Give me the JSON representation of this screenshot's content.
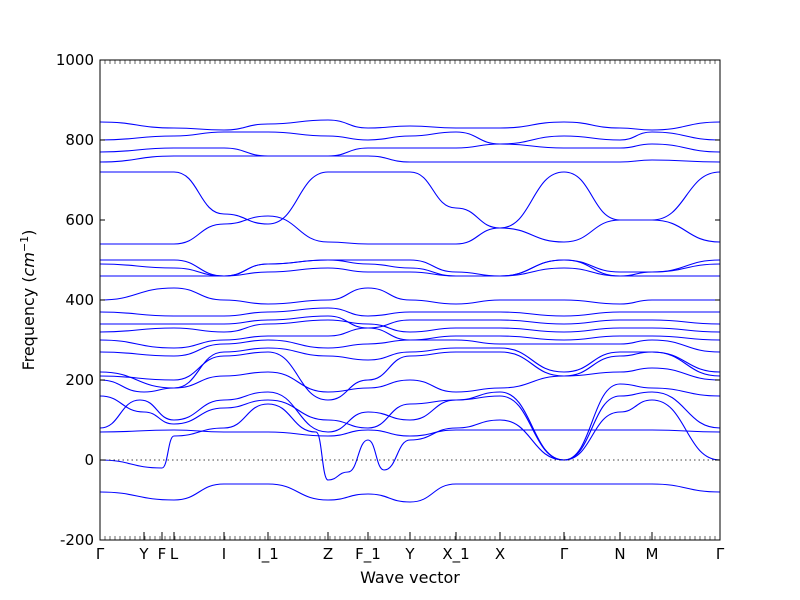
{
  "chart_data": {
    "type": "line",
    "title": "",
    "xlabel": "Wave vector",
    "ylabel": "Frequency ($cm^{-1}$)",
    "ylim": [
      -200,
      1000
    ],
    "yticks": [
      -200,
      0,
      200,
      400,
      600,
      800,
      1000
    ],
    "xlim": [
      0,
      15.5
    ],
    "zero_line": "dotted",
    "x_ticks": [
      {
        "label": "Γ",
        "x": 0.0
      },
      {
        "label": "Y",
        "x": 1.1
      },
      {
        "label": "F",
        "x": 1.55
      },
      {
        "label": "L",
        "x": 1.85
      },
      {
        "label": "I",
        "x": 3.1
      },
      {
        "label": "I_1",
        "x": 4.2
      },
      {
        "label": "Z",
        "x": 5.7
      },
      {
        "label": "F_1",
        "x": 6.7
      },
      {
        "label": "Y",
        "x": 7.75
      },
      {
        "label": "X_1",
        "x": 8.9
      },
      {
        "label": "X",
        "x": 10.0
      },
      {
        "label": "Γ",
        "x": 11.6
      },
      {
        "label": "N",
        "x": 13.0
      },
      {
        "label": "M",
        "x": 13.8
      },
      {
        "label": "Γ",
        "x": 15.5
      }
    ],
    "series": [
      {
        "x": [
          0,
          1.85,
          3.1,
          4.2,
          5.7,
          6.7,
          7.75,
          8.9,
          10.0,
          11.6,
          13.0,
          13.8,
          15.5
        ],
        "values": [
          -80,
          -100,
          -60,
          -60,
          -100,
          -85,
          -105,
          -60,
          -60,
          -60,
          -60,
          -60,
          -80
        ]
      },
      {
        "x": [
          0,
          1.55,
          1.85,
          3.1,
          4.2,
          5.4,
          5.7,
          6.2,
          6.7,
          7.1,
          7.75,
          8.9,
          10.0,
          11.6,
          13.0,
          13.8,
          15.5
        ],
        "values": [
          0,
          -20,
          60,
          80,
          140,
          70,
          -50,
          -30,
          50,
          -25,
          50,
          80,
          100,
          0,
          120,
          150,
          0
        ]
      },
      {
        "x": [
          0,
          1.85,
          3.1,
          4.2,
          5.7,
          6.7,
          7.75,
          8.9,
          10.0,
          11.6,
          13.0,
          13.8,
          15.5
        ],
        "values": [
          70,
          75,
          70,
          70,
          60,
          75,
          60,
          75,
          75,
          75,
          75,
          75,
          70
        ]
      },
      {
        "x": [
          0,
          1.0,
          1.85,
          3.1,
          4.2,
          5.7,
          6.7,
          7.75,
          8.9,
          10.0,
          11.6,
          13.0,
          13.8,
          15.5
        ],
        "values": [
          80,
          150,
          100,
          150,
          170,
          70,
          120,
          100,
          150,
          170,
          0,
          160,
          170,
          80
        ]
      },
      {
        "x": [
          0,
          1.1,
          1.85,
          3.1,
          4.2,
          5.7,
          6.7,
          7.75,
          8.9,
          10.0,
          11.6,
          13.0,
          13.8,
          15.5
        ],
        "values": [
          160,
          120,
          90,
          130,
          150,
          100,
          80,
          140,
          150,
          160,
          0,
          190,
          180,
          160
        ]
      },
      {
        "x": [
          0,
          1.1,
          1.85,
          3.1,
          4.2,
          5.7,
          6.7,
          7.75,
          8.9,
          10.0,
          11.6,
          13.0,
          13.8,
          15.5
        ],
        "values": [
          200,
          170,
          180,
          210,
          220,
          170,
          180,
          200,
          170,
          180,
          210,
          220,
          230,
          200
        ]
      },
      {
        "x": [
          0,
          1.85,
          3.1,
          4.2,
          5.7,
          6.7,
          7.75,
          8.9,
          10.0,
          11.6,
          13.0,
          13.8,
          15.5
        ],
        "values": [
          210,
          200,
          260,
          270,
          150,
          200,
          260,
          270,
          270,
          210,
          260,
          270,
          210
        ]
      },
      {
        "x": [
          0,
          1.85,
          3.1,
          4.2,
          5.7,
          6.7,
          7.75,
          8.9,
          10.0,
          11.6,
          13.0,
          13.8,
          15.5
        ],
        "values": [
          220,
          180,
          270,
          280,
          260,
          250,
          270,
          280,
          280,
          220,
          270,
          270,
          220
        ]
      },
      {
        "x": [
          0,
          1.85,
          3.1,
          4.2,
          5.7,
          6.7,
          7.75,
          8.9,
          10.0,
          11.6,
          13.0,
          13.8,
          15.5
        ],
        "values": [
          270,
          260,
          290,
          300,
          280,
          290,
          300,
          300,
          290,
          290,
          290,
          300,
          270
        ]
      },
      {
        "x": [
          0,
          1.85,
          3.1,
          4.2,
          5.7,
          6.7,
          7.75,
          8.9,
          10.0,
          11.6,
          13.0,
          13.8,
          15.5
        ],
        "values": [
          300,
          280,
          300,
          310,
          310,
          330,
          300,
          310,
          310,
          300,
          310,
          310,
          300
        ]
      },
      {
        "x": [
          0,
          1.85,
          3.1,
          4.2,
          5.7,
          6.7,
          7.75,
          8.9,
          10.0,
          11.6,
          13.0,
          13.8,
          15.5
        ],
        "values": [
          320,
          330,
          320,
          340,
          350,
          340,
          320,
          330,
          330,
          320,
          330,
          330,
          320
        ]
      },
      {
        "x": [
          0,
          1.85,
          3.1,
          4.2,
          5.7,
          6.7,
          7.75,
          8.9,
          10.0,
          11.6,
          13.0,
          13.8,
          15.5
        ],
        "values": [
          340,
          340,
          340,
          350,
          360,
          330,
          350,
          350,
          350,
          340,
          350,
          350,
          340
        ]
      },
      {
        "x": [
          0,
          1.85,
          3.1,
          4.2,
          5.7,
          6.7,
          7.75,
          8.9,
          10.0,
          11.6,
          13.0,
          13.8,
          15.5
        ],
        "values": [
          370,
          360,
          360,
          370,
          380,
          360,
          370,
          370,
          370,
          360,
          370,
          370,
          370
        ]
      },
      {
        "x": [
          0,
          1.85,
          3.1,
          4.2,
          5.7,
          6.7,
          7.75,
          8.9,
          10.0,
          11.6,
          13.0,
          13.8,
          15.5
        ],
        "values": [
          400,
          430,
          400,
          390,
          400,
          430,
          400,
          390,
          400,
          400,
          390,
          400,
          400
        ]
      },
      {
        "x": [
          0,
          1.85,
          3.1,
          4.2,
          5.7,
          6.7,
          7.75,
          8.9,
          10.0,
          11.6,
          13.0,
          13.8,
          15.5
        ],
        "values": [
          460,
          460,
          460,
          470,
          480,
          470,
          470,
          460,
          460,
          480,
          460,
          460,
          460
        ]
      },
      {
        "x": [
          0,
          1.85,
          3.1,
          4.2,
          5.7,
          6.7,
          7.75,
          8.9,
          10.0,
          11.6,
          13.0,
          13.8,
          15.5
        ],
        "values": [
          490,
          480,
          460,
          490,
          500,
          490,
          480,
          460,
          460,
          500,
          460,
          470,
          490
        ]
      },
      {
        "x": [
          0,
          1.85,
          3.1,
          4.2,
          5.7,
          6.7,
          7.75,
          8.9,
          10.0,
          11.6,
          13.0,
          13.8,
          15.5
        ],
        "values": [
          500,
          500,
          460,
          490,
          500,
          500,
          500,
          470,
          460,
          500,
          470,
          470,
          500
        ]
      },
      {
        "x": [
          0,
          1.85,
          3.1,
          4.2,
          5.7,
          6.7,
          7.75,
          8.9,
          10.0,
          11.6,
          13.0,
          13.8,
          15.5
        ],
        "values": [
          540,
          540,
          590,
          610,
          545,
          540,
          540,
          540,
          580,
          545,
          600,
          600,
          545
        ]
      },
      {
        "x": [
          0,
          1.85,
          3.1,
          4.2,
          5.7,
          6.7,
          7.75,
          8.9,
          10.0,
          11.6,
          13.0,
          13.8,
          15.5
        ],
        "values": [
          720,
          720,
          615,
          590,
          720,
          720,
          720,
          630,
          580,
          720,
          600,
          600,
          720
        ]
      },
      {
        "x": [
          0,
          1.85,
          3.1,
          4.2,
          5.7,
          6.7,
          7.75,
          8.9,
          10.0,
          11.6,
          13.0,
          13.8,
          15.5
        ],
        "values": [
          745,
          760,
          760,
          760,
          760,
          760,
          745,
          745,
          745,
          745,
          745,
          750,
          745
        ]
      },
      {
        "x": [
          0,
          1.85,
          3.1,
          4.2,
          5.7,
          6.7,
          7.75,
          8.9,
          10.0,
          11.6,
          13.0,
          13.8,
          15.5
        ],
        "values": [
          770,
          780,
          780,
          760,
          760,
          780,
          780,
          780,
          790,
          780,
          780,
          790,
          770
        ]
      },
      {
        "x": [
          0,
          1.85,
          3.1,
          4.2,
          5.7,
          6.7,
          7.75,
          8.9,
          10.0,
          11.6,
          13.0,
          13.8,
          15.5
        ],
        "values": [
          800,
          810,
          820,
          820,
          810,
          800,
          810,
          820,
          790,
          810,
          800,
          820,
          800
        ]
      },
      {
        "x": [
          0,
          1.85,
          3.1,
          4.2,
          5.7,
          6.7,
          7.75,
          8.9,
          10.0,
          11.6,
          13.0,
          13.8,
          15.5
        ],
        "values": [
          845,
          830,
          825,
          840,
          850,
          830,
          835,
          830,
          830,
          845,
          830,
          825,
          845
        ]
      }
    ]
  }
}
